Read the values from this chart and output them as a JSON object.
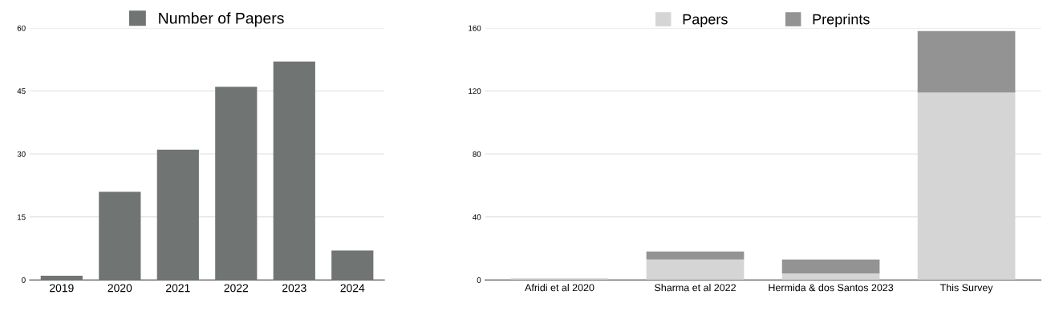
{
  "chart_data": [
    {
      "type": "bar",
      "categories": [
        "2019",
        "2020",
        "2021",
        "2022",
        "2023",
        "2024"
      ],
      "series": [
        {
          "name": "Number of Papers",
          "color": "#707472",
          "values": [
            1,
            21,
            31,
            46,
            52,
            7
          ]
        }
      ],
      "ylim": [
        0,
        60
      ],
      "yticks": [
        0,
        15,
        30,
        45,
        60
      ],
      "grid": "y",
      "legend": "top"
    },
    {
      "type": "bar",
      "stacked": true,
      "categories": [
        "Afridi et al 2020",
        "Sharma et al 2022",
        "Hermida & dos Santos 2023",
        "This Survey"
      ],
      "series": [
        {
          "name": "Papers",
          "color": "#d5d5d5",
          "values": [
            1,
            13,
            4,
            119
          ]
        },
        {
          "name": "Preprints",
          "color": "#939393",
          "values": [
            0,
            5,
            9,
            39
          ]
        }
      ],
      "ylim": [
        0,
        160
      ],
      "yticks": [
        0,
        40,
        80,
        120,
        160
      ],
      "grid": "y",
      "legend": "top"
    }
  ]
}
